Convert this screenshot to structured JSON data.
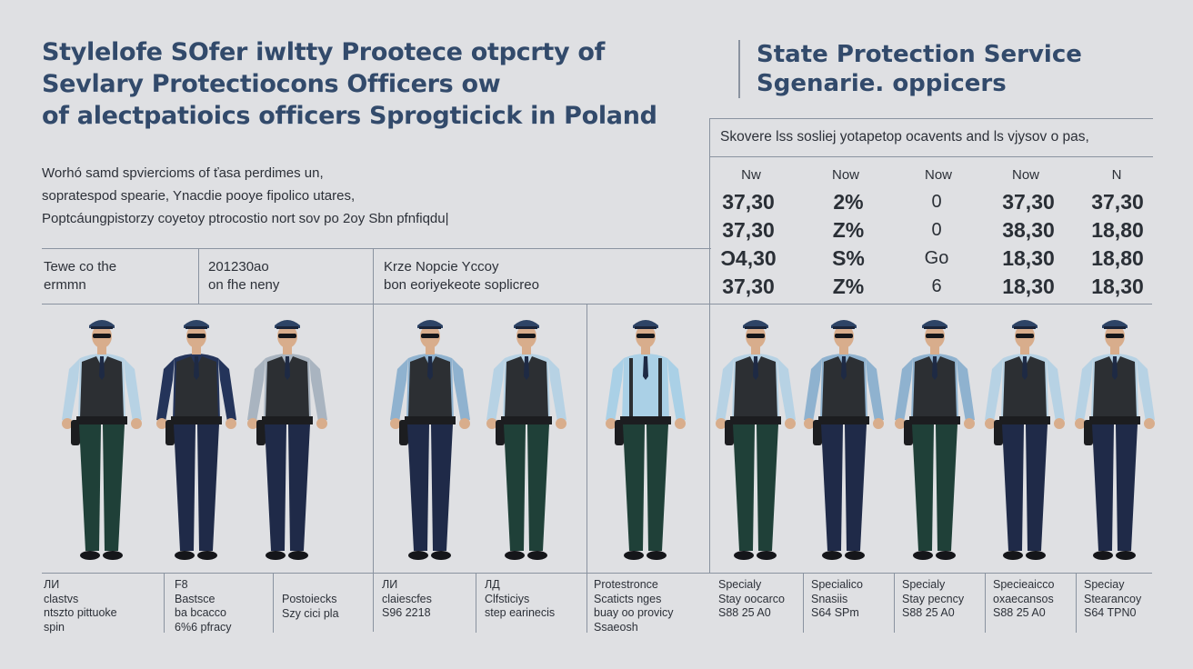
{
  "title": {
    "line1": "Stylelofe SOfer   iwltty Prootece otpcrty of",
    "line2": "Sevlary Protectiocons Officers ow",
    "line3": "of alectpatioics officers Sprogticick in Poland"
  },
  "intro": {
    "line1": "Worhó samd spviercioms of ťasa perdimes un,",
    "line2": "sopratespod spearie, Ynacdie pooye fipolico utares,",
    "line3": "Poptcáungpistorzy coyetoy ptrocostio nort sov po 2oy Sbn pfnfiqdu|"
  },
  "right_title": {
    "line1": "State Protection Service",
    "line2": "Sgenarie. oppicers"
  },
  "section_headers": [
    {
      "line1": "Tewe co the",
      "line2": "ermmn"
    },
    {
      "line1": "201230ao",
      "line2": "on fhe neny"
    },
    {
      "line1": "Krze Nopcie Yccoy",
      "line2": "bon eoriyekeote soplicreo"
    }
  ],
  "table": {
    "caption": "Skovere lss sosliej yotapetop ocavents and ls vjysov o pas,",
    "columns": [
      "Nw",
      "Now",
      "Now",
      "Now",
      "N"
    ],
    "rows": [
      [
        "37,30",
        "2%",
        "0",
        "37,30",
        "37,30"
      ],
      [
        "37,30",
        "Z%",
        "0",
        "38,30",
        "18,80"
      ],
      [
        "Ɔ4,30",
        "S%",
        "Go",
        "18,30",
        "18,80"
      ],
      [
        "37,30",
        "Z%",
        "6",
        "18,30",
        "18,30"
      ]
    ]
  },
  "colors": {
    "background": "#dfe0e3",
    "title_blue": "#324a6b",
    "divider": "#8a93a0",
    "vest": "#2c2f33",
    "pants_green": "#1f4038",
    "pants_navy": "#1f2a48"
  },
  "officers": [
    {
      "shirt": "#b7d2e4",
      "pants": "#1f4038",
      "cap": "#2e4466"
    },
    {
      "shirt": "#24345a",
      "pants": "#1f2a48",
      "cap": "#2e4466"
    },
    {
      "shirt": "#a9b4c0",
      "pants": "#1f2a48",
      "cap": "#2e4466"
    },
    {
      "shirt": "#8fb2cf",
      "pants": "#1f2a48",
      "cap": "#2e4466"
    },
    {
      "shirt": "#b7d2e4",
      "pants": "#1f4038",
      "cap": "#2e4466"
    },
    {
      "shirt": "#aad0e6",
      "pants": "#1f4038",
      "cap": "#2e4466",
      "no_vest": true
    },
    {
      "shirt": "#b7d2e4",
      "pants": "#1f4038",
      "cap": "#2e4466"
    },
    {
      "shirt": "#8fb2cf",
      "pants": "#1f2a48",
      "cap": "#2e4466"
    },
    {
      "shirt": "#8fb2cf",
      "pants": "#1f4038",
      "cap": "#2e4466"
    },
    {
      "shirt": "#b7d2e4",
      "pants": "#1f2a48",
      "cap": "#2e4466"
    },
    {
      "shirt": "#b7d2e4",
      "pants": "#1f2a48",
      "cap": "#2e4466"
    }
  ],
  "footer": [
    {
      "line1": "ЛИ",
      "line2": "clastvs",
      "line3": "ntszto pittuoke",
      "line4": "spin"
    },
    {
      "line1": "F8",
      "line2": "Bastsce",
      "line3": "ba bcacco",
      "line4": "6%6 pfracy"
    },
    {
      "line1": "Postoiecks",
      "line2": "Szy cici pla",
      "line3": "",
      "line4": ""
    },
    {
      "line1": "ЛИ",
      "line2": "claiescfes",
      "line3": "S96 2218",
      "line4": ""
    },
    {
      "line1": "ЛД",
      "line2": "Clfsticiys",
      "line3": "step earinecis",
      "line4": ""
    },
    {
      "line1": "Protestronce",
      "line2": "Scaticts nges",
      "line3": "buay oo provicy",
      "line4": "Ssaeosh"
    },
    {
      "line1": "Specialy",
      "line2": "Stay oocarco",
      "line3": "S88 25 A0",
      "line4": ""
    },
    {
      "line1": "Specialico",
      "line2": "Snasiis",
      "line3": "S64 SPm",
      "line4": ""
    },
    {
      "line1": "Specialy",
      "line2": "Stay pecncy",
      "line3": "S88 25 A0",
      "line4": ""
    },
    {
      "line1": "Specieaicco",
      "line2": "oxaecansos",
      "line3": "S88 25 A0",
      "line4": ""
    },
    {
      "line1": "Speciay",
      "line2": "Stearancoy",
      "line3": "S64 TPN0",
      "line4": ""
    }
  ]
}
